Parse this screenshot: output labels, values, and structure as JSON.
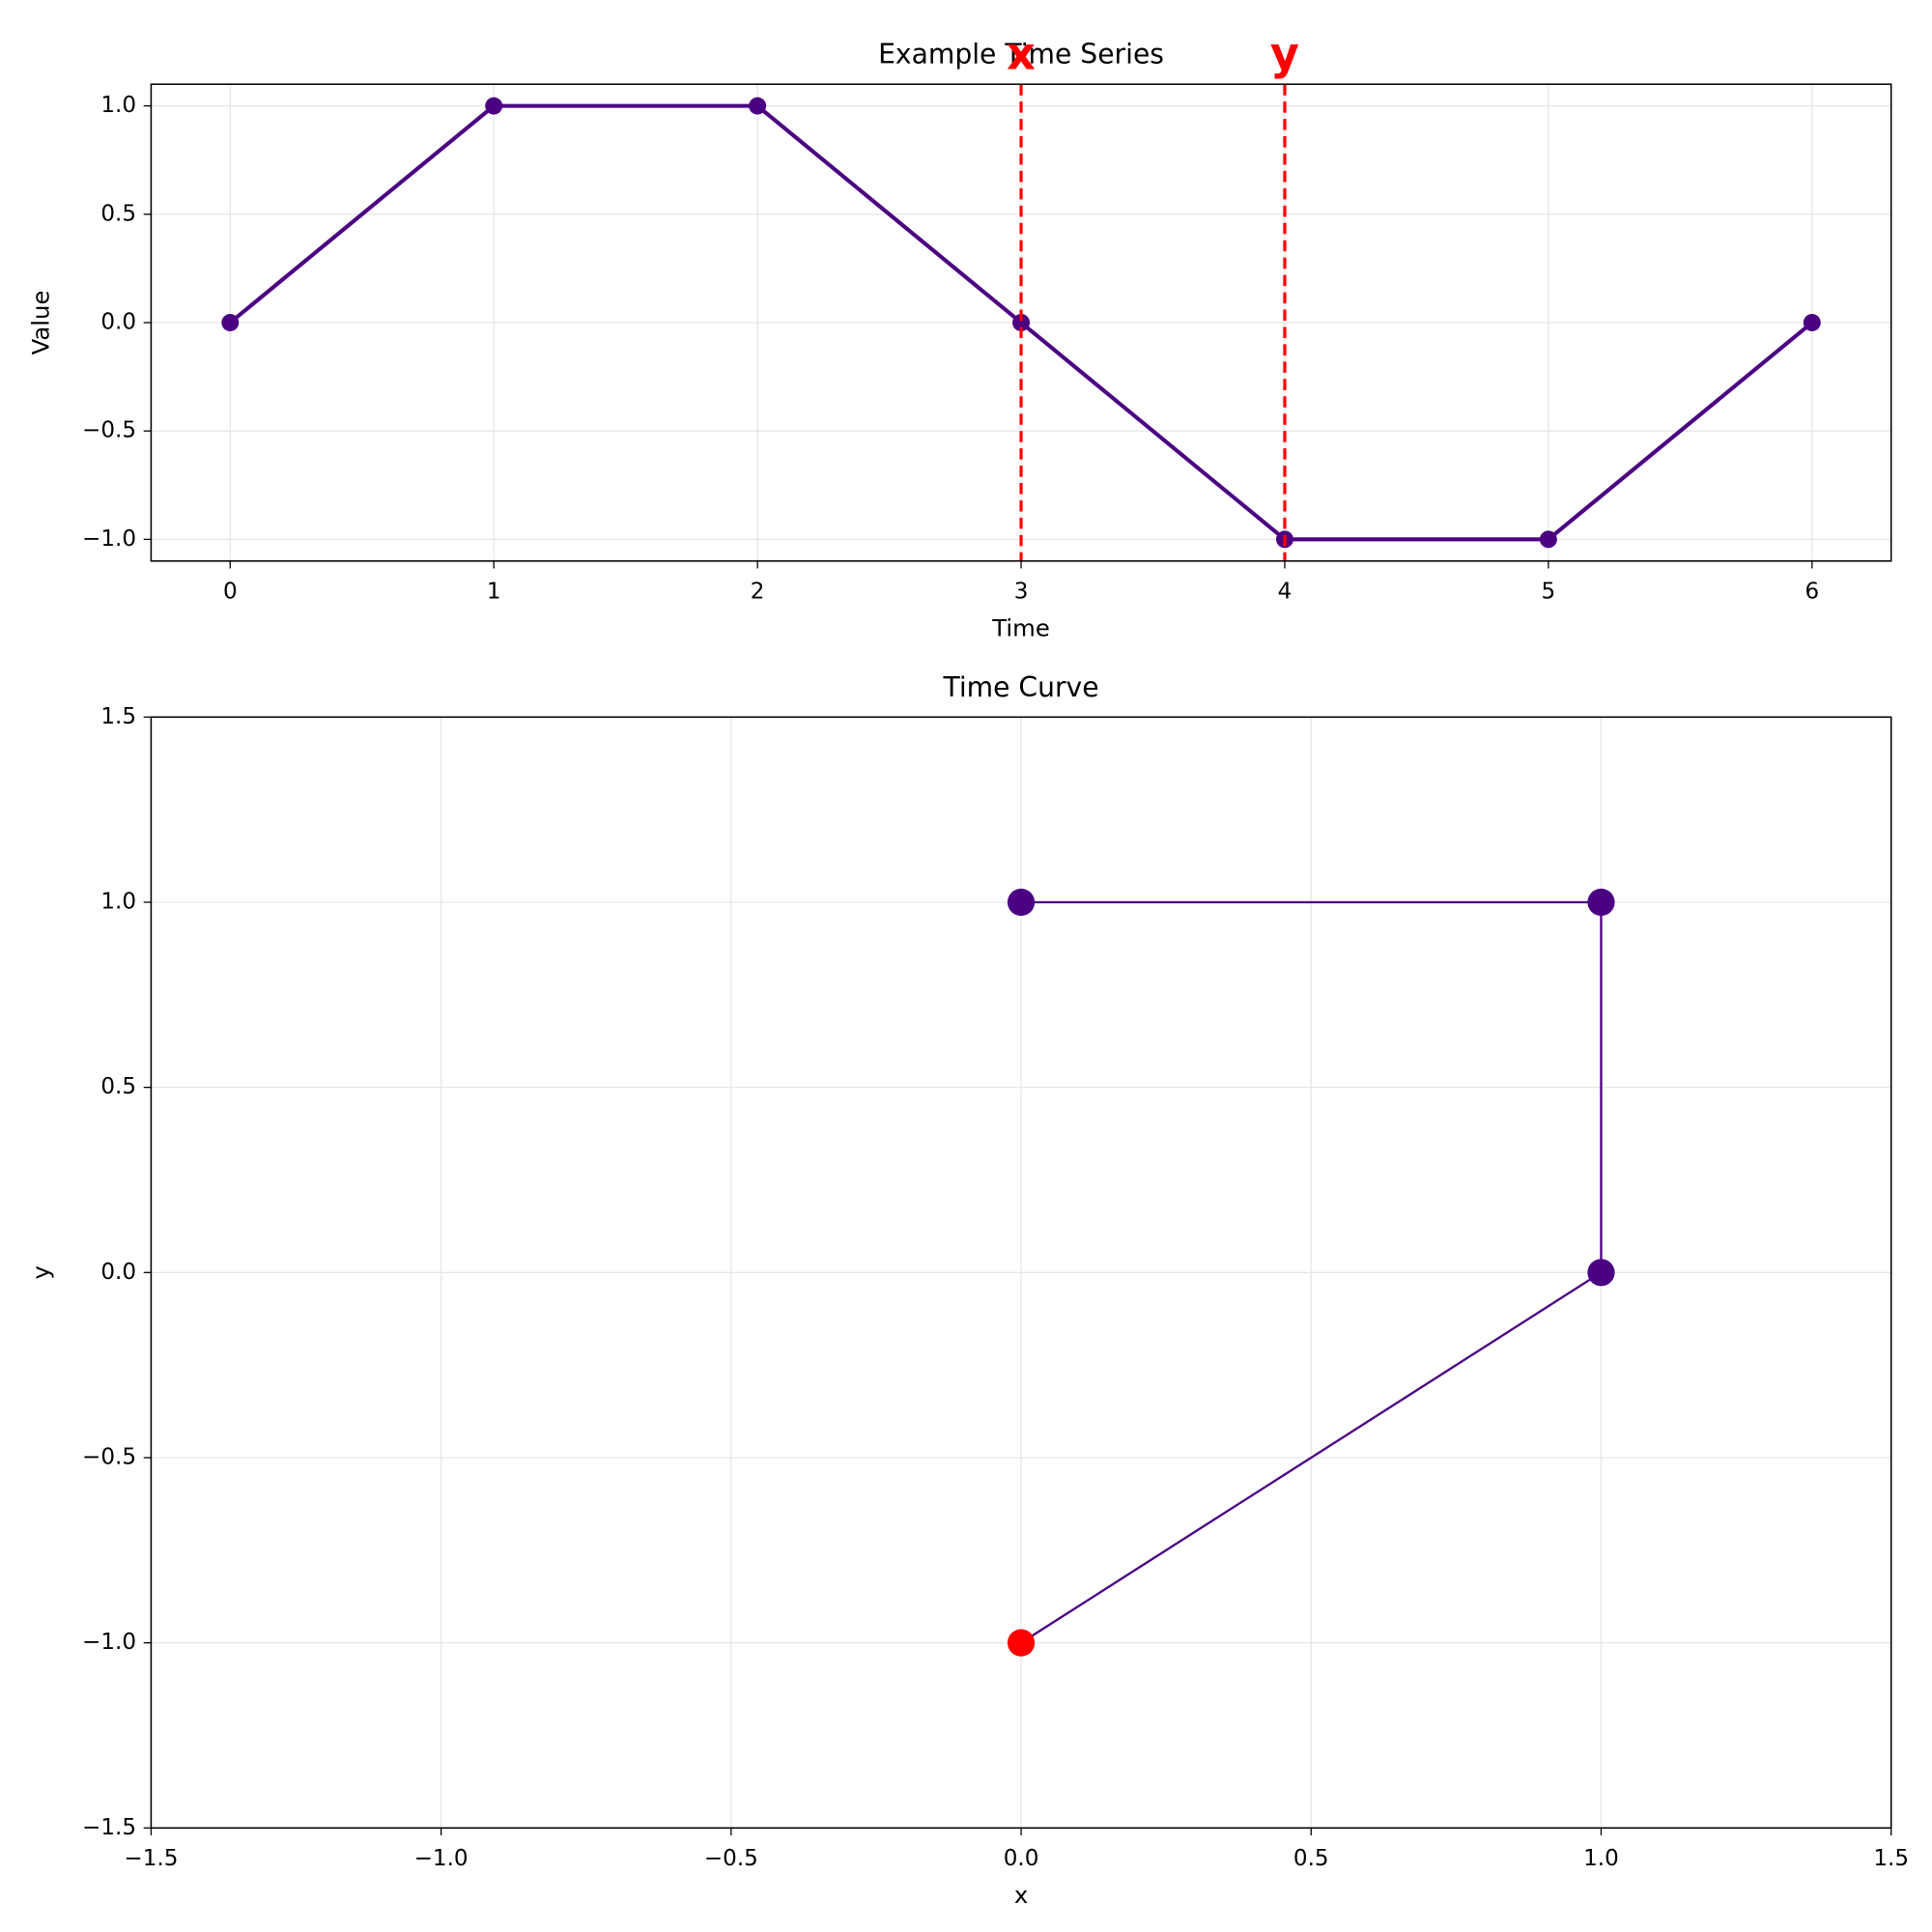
{
  "chart_data": [
    {
      "type": "line",
      "title": "Example Time Series",
      "xlabel": "Time",
      "ylabel": "Value",
      "x": [
        0,
        1,
        2,
        3,
        4,
        5,
        6
      ],
      "series": [
        {
          "color": "#4b0082",
          "values": [
            0,
            1,
            1,
            0,
            -1,
            -1,
            0
          ]
        }
      ],
      "xlim": [
        -0.3,
        6.3
      ],
      "ylim": [
        -1.1,
        1.1
      ],
      "xticks": [
        0,
        1,
        2,
        3,
        4,
        5,
        6
      ],
      "yticks": [
        {
          "value": -1,
          "label": "−1.0"
        },
        {
          "value": -0.5,
          "label": "−0.5"
        },
        {
          "value": 0,
          "label": "0.0"
        },
        0.5,
        {
          "value": 1,
          "label": "1.0"
        }
      ],
      "grid": true,
      "markers": [
        {
          "x": 3,
          "label": "x",
          "color": "#ff0000"
        },
        {
          "x": 4,
          "label": "y",
          "color": "#ff0000"
        }
      ]
    },
    {
      "type": "line",
      "title": "Time Curve",
      "xlabel": "x",
      "ylabel": "y",
      "x": [
        0,
        1,
        1,
        0
      ],
      "series": [
        {
          "color": "#4b0082",
          "values": [
            -1,
            0,
            1,
            1
          ],
          "point_colors": [
            "#ff0000",
            "#4b0082",
            "#4b0082",
            "#4b0082"
          ]
        }
      ],
      "xlim": [
        -1.5,
        1.5
      ],
      "ylim": [
        -1.5,
        1.5
      ],
      "xticks": [
        {
          "value": -1.5,
          "label": "−1.5"
        },
        {
          "value": -1,
          "label": "−1.0"
        },
        {
          "value": -0.5,
          "label": "−0.5"
        },
        {
          "value": 0,
          "label": "0.0"
        },
        0.5,
        {
          "value": 1,
          "label": "1.0"
        },
        1.5
      ],
      "yticks": [
        {
          "value": -1.5,
          "label": "−1.5"
        },
        {
          "value": -1,
          "label": "−1.0"
        },
        {
          "value": -0.5,
          "label": "−0.5"
        },
        {
          "value": 0,
          "label": "0.0"
        },
        0.5,
        {
          "value": 1,
          "label": "1.0"
        },
        1.5
      ],
      "grid": true
    }
  ]
}
